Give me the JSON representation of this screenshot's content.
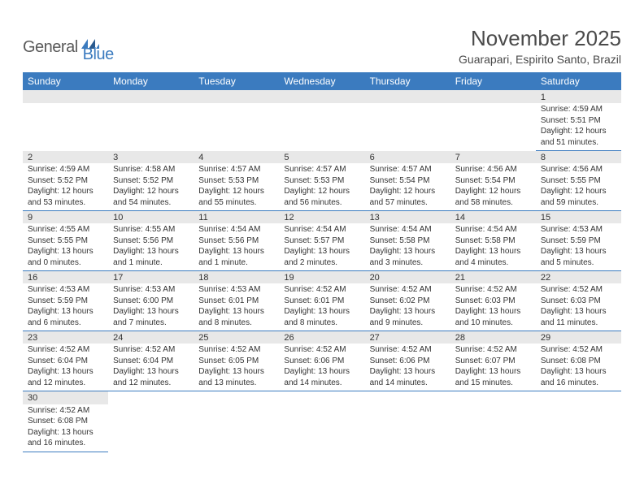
{
  "logo": {
    "general": "General",
    "blue": "Blue",
    "flag_color": "#3b7bbf"
  },
  "title": "November 2025",
  "subtitle": "Guarapari, Espirito Santo, Brazil",
  "colors": {
    "header_bg": "#3b7bbf",
    "header_text": "#ffffff",
    "daynum_bg": "#e8e8e8",
    "border": "#3b7bbf",
    "text": "#333333"
  },
  "day_headers": [
    "Sunday",
    "Monday",
    "Tuesday",
    "Wednesday",
    "Thursday",
    "Friday",
    "Saturday"
  ],
  "weeks": [
    [
      null,
      null,
      null,
      null,
      null,
      null,
      {
        "n": "1",
        "sr": "4:59 AM",
        "ss": "5:51 PM",
        "dl": "12 hours and 51 minutes."
      }
    ],
    [
      {
        "n": "2",
        "sr": "4:59 AM",
        "ss": "5:52 PM",
        "dl": "12 hours and 53 minutes."
      },
      {
        "n": "3",
        "sr": "4:58 AM",
        "ss": "5:52 PM",
        "dl": "12 hours and 54 minutes."
      },
      {
        "n": "4",
        "sr": "4:57 AM",
        "ss": "5:53 PM",
        "dl": "12 hours and 55 minutes."
      },
      {
        "n": "5",
        "sr": "4:57 AM",
        "ss": "5:53 PM",
        "dl": "12 hours and 56 minutes."
      },
      {
        "n": "6",
        "sr": "4:57 AM",
        "ss": "5:54 PM",
        "dl": "12 hours and 57 minutes."
      },
      {
        "n": "7",
        "sr": "4:56 AM",
        "ss": "5:54 PM",
        "dl": "12 hours and 58 minutes."
      },
      {
        "n": "8",
        "sr": "4:56 AM",
        "ss": "5:55 PM",
        "dl": "12 hours and 59 minutes."
      }
    ],
    [
      {
        "n": "9",
        "sr": "4:55 AM",
        "ss": "5:55 PM",
        "dl": "13 hours and 0 minutes."
      },
      {
        "n": "10",
        "sr": "4:55 AM",
        "ss": "5:56 PM",
        "dl": "13 hours and 1 minute."
      },
      {
        "n": "11",
        "sr": "4:54 AM",
        "ss": "5:56 PM",
        "dl": "13 hours and 1 minute."
      },
      {
        "n": "12",
        "sr": "4:54 AM",
        "ss": "5:57 PM",
        "dl": "13 hours and 2 minutes."
      },
      {
        "n": "13",
        "sr": "4:54 AM",
        "ss": "5:58 PM",
        "dl": "13 hours and 3 minutes."
      },
      {
        "n": "14",
        "sr": "4:54 AM",
        "ss": "5:58 PM",
        "dl": "13 hours and 4 minutes."
      },
      {
        "n": "15",
        "sr": "4:53 AM",
        "ss": "5:59 PM",
        "dl": "13 hours and 5 minutes."
      }
    ],
    [
      {
        "n": "16",
        "sr": "4:53 AM",
        "ss": "5:59 PM",
        "dl": "13 hours and 6 minutes."
      },
      {
        "n": "17",
        "sr": "4:53 AM",
        "ss": "6:00 PM",
        "dl": "13 hours and 7 minutes."
      },
      {
        "n": "18",
        "sr": "4:53 AM",
        "ss": "6:01 PM",
        "dl": "13 hours and 8 minutes."
      },
      {
        "n": "19",
        "sr": "4:52 AM",
        "ss": "6:01 PM",
        "dl": "13 hours and 8 minutes."
      },
      {
        "n": "20",
        "sr": "4:52 AM",
        "ss": "6:02 PM",
        "dl": "13 hours and 9 minutes."
      },
      {
        "n": "21",
        "sr": "4:52 AM",
        "ss": "6:03 PM",
        "dl": "13 hours and 10 minutes."
      },
      {
        "n": "22",
        "sr": "4:52 AM",
        "ss": "6:03 PM",
        "dl": "13 hours and 11 minutes."
      }
    ],
    [
      {
        "n": "23",
        "sr": "4:52 AM",
        "ss": "6:04 PM",
        "dl": "13 hours and 12 minutes."
      },
      {
        "n": "24",
        "sr": "4:52 AM",
        "ss": "6:04 PM",
        "dl": "13 hours and 12 minutes."
      },
      {
        "n": "25",
        "sr": "4:52 AM",
        "ss": "6:05 PM",
        "dl": "13 hours and 13 minutes."
      },
      {
        "n": "26",
        "sr": "4:52 AM",
        "ss": "6:06 PM",
        "dl": "13 hours and 14 minutes."
      },
      {
        "n": "27",
        "sr": "4:52 AM",
        "ss": "6:06 PM",
        "dl": "13 hours and 14 minutes."
      },
      {
        "n": "28",
        "sr": "4:52 AM",
        "ss": "6:07 PM",
        "dl": "13 hours and 15 minutes."
      },
      {
        "n": "29",
        "sr": "4:52 AM",
        "ss": "6:08 PM",
        "dl": "13 hours and 16 minutes."
      }
    ],
    [
      {
        "n": "30",
        "sr": "4:52 AM",
        "ss": "6:08 PM",
        "dl": "13 hours and 16 minutes."
      },
      null,
      null,
      null,
      null,
      null,
      null
    ]
  ],
  "labels": {
    "sunrise": "Sunrise:",
    "sunset": "Sunset:",
    "daylight": "Daylight:"
  }
}
